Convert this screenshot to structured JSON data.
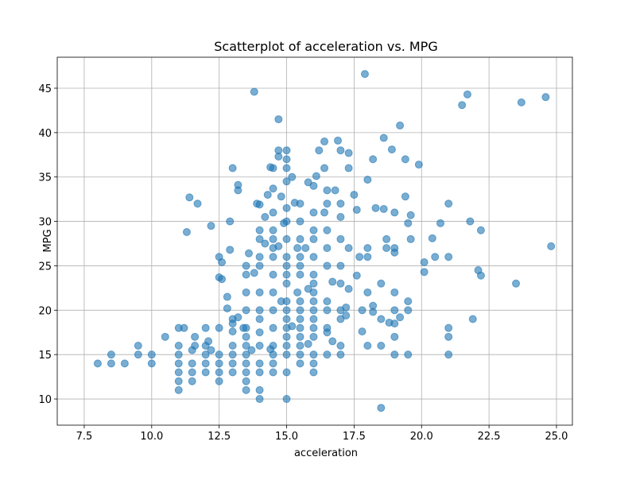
{
  "chart_data": {
    "type": "scatter",
    "title": "Scatterplot of acceleration vs. MPG",
    "x_label": "acceleration",
    "y_label": "MPG",
    "color": "#1f77b4",
    "alpha": 0.6,
    "grid": true,
    "xlim": [
      6.5,
      25.59
    ],
    "ylim": [
      7.05,
      48.49
    ],
    "xticks": [
      7.5,
      {
        "value": 10,
        "label": "10.0"
      },
      12.5,
      {
        "value": 15,
        "label": "15.0"
      },
      17.5,
      {
        "value": 20,
        "label": "20.0"
      },
      22.5,
      {
        "value": 25,
        "label": "25.0"
      }
    ],
    "yticks": [
      10,
      15,
      20,
      25,
      30,
      35,
      40,
      45
    ],
    "x": [
      8,
      8.5,
      8.5,
      9,
      9.5,
      9.5,
      10,
      10,
      10.5,
      11,
      11,
      11,
      11,
      11,
      11,
      11,
      11.2,
      11.3,
      11.4,
      11.5,
      11.5,
      11.5,
      11.5,
      11.6,
      11.6,
      11.7,
      12,
      12,
      12,
      12,
      12,
      12.1,
      12.2,
      12.2,
      12.5,
      12.5,
      12.5,
      12.5,
      12.5,
      12.5,
      12.5,
      12.6,
      12.6,
      12.8,
      12.8,
      12.9,
      12.9,
      13,
      13,
      13,
      13,
      13,
      13,
      13,
      13,
      13.2,
      13.2,
      13.2,
      13.4,
      13.5,
      13.5,
      13.5,
      13.5,
      13.5,
      13.5,
      13.5,
      13.5,
      13.5,
      13.5,
      13.5,
      13.5,
      13.6,
      13.7,
      13.8,
      13.8,
      13.9,
      14,
      14,
      14,
      14,
      14,
      14,
      14,
      14,
      14,
      14,
      14,
      14,
      14,
      14,
      14.2,
      14.2,
      14.3,
      14.4,
      14.5,
      14.5,
      14.5,
      14.5,
      14.5,
      14.5,
      14.5,
      14.5,
      14.5,
      14.5,
      14.5,
      14.5,
      14.5,
      14.5,
      14.5,
      14.4,
      14.7,
      14.7,
      14.7,
      14.7,
      14.8,
      14.8,
      14.9,
      15,
      15,
      15,
      15,
      15,
      15,
      15,
      15,
      15,
      15,
      15,
      15,
      15,
      15,
      15,
      15,
      15,
      15,
      15,
      15,
      15.2,
      15.2,
      15.3,
      15.4,
      15.4,
      15.5,
      15.5,
      15.5,
      15.5,
      15.5,
      15.5,
      15.5,
      15.5,
      15.5,
      15.5,
      15.5,
      15.5,
      15.5,
      15.5,
      15.7,
      15.8,
      15.8,
      15.8,
      16,
      16,
      16,
      16,
      16,
      16,
      16,
      16,
      16,
      16,
      16,
      16,
      16,
      16,
      16,
      16,
      16.1,
      16.2,
      16.4,
      16.4,
      16.4,
      16.5,
      16.5,
      16.5,
      16.5,
      16.5,
      16.5,
      16.5,
      16.5,
      16.5,
      16.5,
      16.7,
      16.7,
      16.8,
      16.9,
      17,
      17,
      17,
      17,
      17,
      17,
      17,
      17,
      17,
      17,
      17.2,
      17.2,
      17.3,
      17.3,
      17.3,
      17.3,
      17.5,
      17.6,
      17.6,
      17.7,
      17.8,
      17.8,
      17.9,
      18,
      18,
      18,
      18,
      18,
      18.2,
      18.2,
      18.2,
      18.3,
      18.5,
      18.5,
      18.5,
      18.5,
      18.6,
      18.6,
      18.7,
      18.7,
      18.8,
      18.9,
      19,
      19,
      19,
      19,
      19,
      19,
      19,
      19,
      19.2,
      19.2,
      19.4,
      19.4,
      19.5,
      19.5,
      19.5,
      19.5,
      19.6,
      19.6,
      19.9,
      20.1,
      20.1,
      20.4,
      20.5,
      20.7,
      21,
      21,
      21,
      21,
      21,
      21.5,
      21.7,
      21.8,
      21.9,
      22.1,
      22.2,
      22.2,
      23.5,
      23.7,
      24.6,
      24.8
    ],
    "values": [
      14,
      14,
      15,
      14,
      15,
      16,
      14,
      15,
      17,
      11,
      12,
      13,
      14,
      15,
      16,
      18,
      18,
      28.8,
      32.7,
      15.5,
      12,
      13,
      14,
      17,
      16,
      32,
      13,
      14,
      15,
      16,
      18,
      16.5,
      29.5,
      15.5,
      12,
      13,
      14,
      15,
      18,
      23.7,
      26,
      23.5,
      25.4,
      20.2,
      21.5,
      26.8,
      30,
      13,
      14,
      15,
      16,
      17.6,
      18.5,
      19,
      36,
      19.2,
      33.5,
      34.1,
      18,
      13,
      14,
      15,
      16,
      17,
      18,
      20,
      22,
      24,
      25,
      11,
      12,
      26.4,
      15.5,
      44.6,
      24.2,
      32,
      10,
      11,
      13,
      14,
      16,
      17.5,
      19,
      20,
      22,
      25,
      26,
      28,
      29,
      31.9,
      30.5,
      27.5,
      33,
      15.6,
      13,
      14,
      15,
      16,
      18,
      20,
      22,
      24,
      26,
      27,
      28,
      29,
      31,
      36,
      33.7,
      36.1,
      41.5,
      38,
      37.3,
      27.2,
      21,
      32.8,
      29.8,
      10,
      13,
      15,
      16,
      17,
      18,
      19,
      20,
      21,
      23,
      24,
      25,
      26,
      28,
      30,
      31.5,
      34.5,
      36,
      37,
      38,
      35,
      18.2,
      32.1,
      27,
      22,
      14,
      15,
      16,
      17,
      18,
      19,
      20,
      21,
      24,
      25,
      26,
      28,
      30,
      32,
      27,
      16.2,
      22.4,
      34.4,
      13,
      14,
      15,
      17,
      18,
      19,
      20,
      21,
      22,
      23,
      24,
      26,
      28,
      29,
      31,
      34,
      35.1,
      38,
      31,
      39,
      36,
      15,
      17.5,
      18,
      20,
      21,
      25,
      27,
      29,
      32,
      33.5,
      16.5,
      23.2,
      33.5,
      39.1,
      15,
      16,
      19,
      20,
      23,
      25,
      28,
      30.5,
      32,
      38,
      20.3,
      19.4,
      27,
      22.4,
      37.7,
      36,
      33,
      31.3,
      23.9,
      26,
      20,
      17.6,
      46.6,
      16,
      22,
      26,
      27,
      34.7,
      20.5,
      19.8,
      37,
      31.5,
      9,
      16,
      19,
      23,
      31.4,
      39.4,
      28,
      27,
      18.6,
      38.1,
      15,
      17,
      18.5,
      20,
      22,
      26.5,
      27,
      31,
      19.2,
      40.8,
      32.8,
      37,
      15,
      20,
      21,
      29.8,
      30.7,
      28,
      36.4,
      25.4,
      24.3,
      28.1,
      26,
      29.8,
      15,
      17,
      18,
      26,
      32,
      43.1,
      44.3,
      30,
      19,
      24.5,
      29,
      23.9,
      23,
      43.4,
      44,
      27.2
    ]
  }
}
